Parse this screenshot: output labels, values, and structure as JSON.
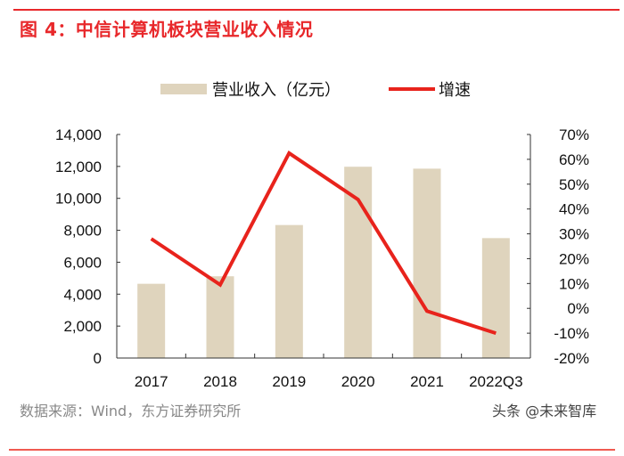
{
  "title": "图 4：中信计算机板块营业收入情况",
  "source": "数据来源：Wind，东方证券研究所",
  "watermark": "头条 @未来智库",
  "chart_data": {
    "type": "bar+line",
    "title": "图 4：中信计算机板块营业收入情况",
    "categories": [
      "2017",
      "2018",
      "2019",
      "2020",
      "2021",
      "2022Q3"
    ],
    "series": [
      {
        "name": "营业收入（亿元）",
        "type": "bar",
        "axis": "left",
        "color": "#dfd4bd",
        "values": [
          4650,
          5120,
          8330,
          11980,
          11860,
          7510
        ]
      },
      {
        "name": "增速",
        "type": "line",
        "axis": "right",
        "color": "#e8231c",
        "values": [
          28.0,
          9.5,
          62.5,
          43.8,
          -1.1,
          -10.0
        ]
      }
    ],
    "y_left": {
      "ylim": [
        0,
        14000
      ],
      "ticks": [
        "0",
        "2,000",
        "4,000",
        "6,000",
        "8,000",
        "10,000",
        "12,000",
        "14,000"
      ]
    },
    "y_right": {
      "ylim": [
        -20,
        70
      ],
      "ticks": [
        "-20%",
        "-10%",
        "0%",
        "10%",
        "20%",
        "30%",
        "40%",
        "50%",
        "60%",
        "70%"
      ]
    },
    "legend": "top",
    "grid": false
  }
}
